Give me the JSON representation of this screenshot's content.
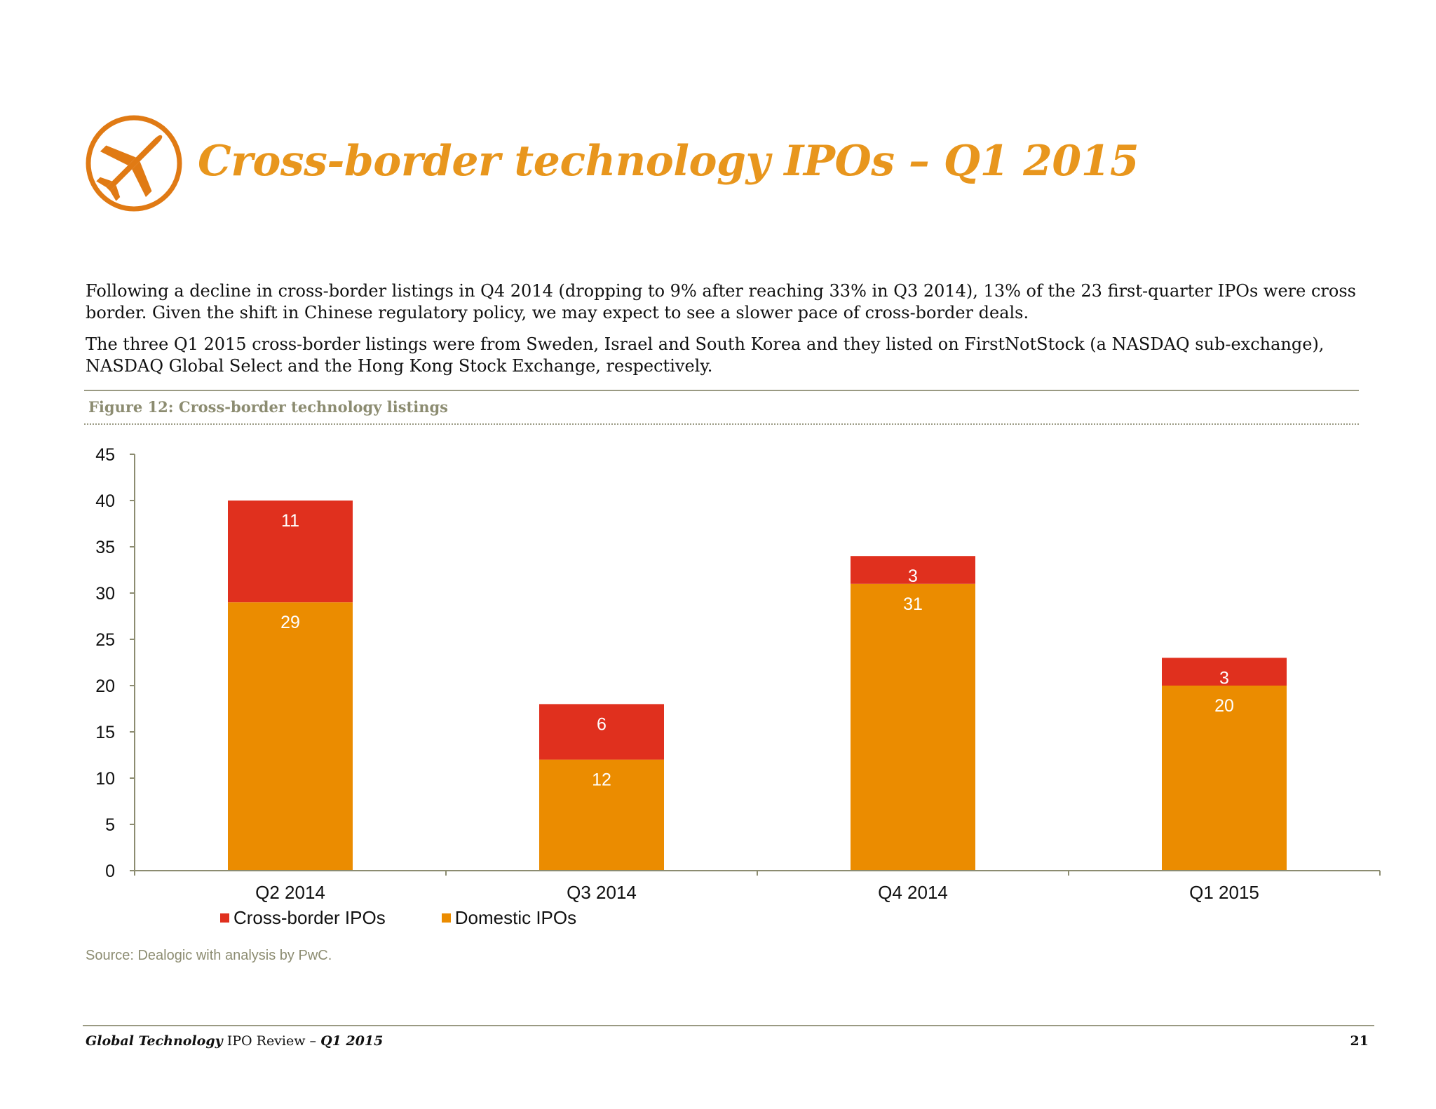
{
  "header": {
    "title": "Cross-border technology IPOs – Q1 2015",
    "logo_icon": "airplane-icon"
  },
  "intro": {
    "p1": "Following a decline in cross-border listings in Q4 2014 (dropping to 9% after reaching 33% in Q3 2014), 13% of the 23 first-quarter IPOs were cross border. Given the shift in Chinese regulatory policy, we may expect to see a slower pace of cross-border deals.",
    "p2": "The three Q1 2015 cross-border listings were from Sweden, Israel and South Korea and they listed on FirstNotStock (a NASDAQ sub-exchange), NASDAQ Global Select and the Hong Kong Stock Exchange, respectively."
  },
  "figure": {
    "title": "Figure 12: Cross-border technology listings",
    "source": "Source: Dealogic with analysis by PwC."
  },
  "chart_data": {
    "type": "bar",
    "stacked": true,
    "categories": [
      "Q2 2014",
      "Q3 2014",
      "Q4 2014",
      "Q1 2015"
    ],
    "series": [
      {
        "name": "Domestic IPOs",
        "values": [
          29,
          12,
          31,
          20
        ],
        "color": "#eb8c00"
      },
      {
        "name": "Cross-border IPOs",
        "values": [
          11,
          6,
          3,
          3
        ],
        "color": "#e0301e"
      }
    ],
    "legend_order": [
      "Cross-border IPOs",
      "Domestic IPOs"
    ],
    "ylim": [
      0,
      45
    ],
    "yticks": [
      0,
      5,
      10,
      15,
      20,
      25,
      30,
      35,
      40,
      45
    ],
    "grid": false,
    "legend_position": "bottom-left",
    "axis_color": "#8c8c71"
  },
  "footer": {
    "brand_italic": "Global Technology",
    "brand_rest": " IPO Review – ",
    "period": "Q1 2015",
    "page_number": "21"
  },
  "colors": {
    "accent": "#e8961d",
    "logo": "#e07a14",
    "rule": "#9a9a83"
  }
}
